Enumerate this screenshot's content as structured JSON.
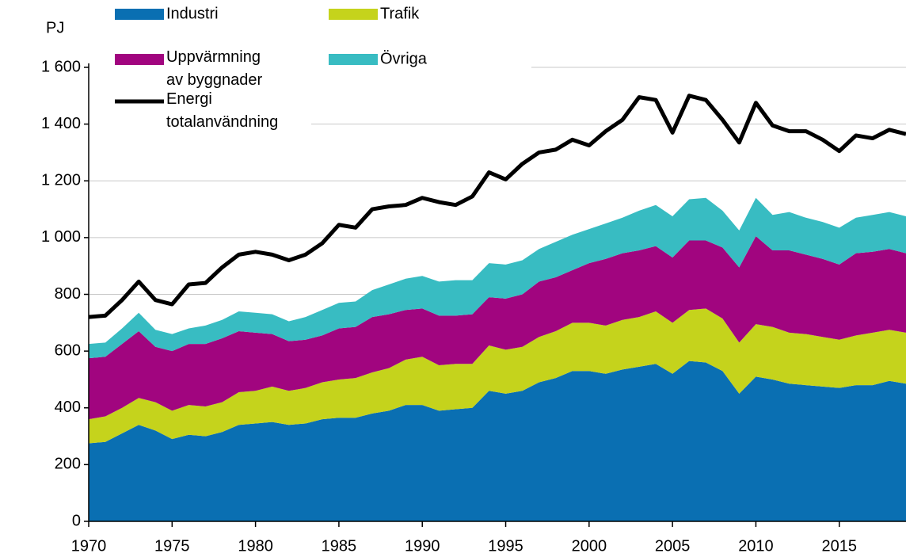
{
  "chart_data": {
    "type": "area",
    "stacked": true,
    "y_label": "PJ",
    "x": [
      1970,
      1971,
      1972,
      1973,
      1974,
      1975,
      1976,
      1977,
      1978,
      1979,
      1980,
      1981,
      1982,
      1983,
      1984,
      1985,
      1986,
      1987,
      1988,
      1989,
      1990,
      1991,
      1992,
      1993,
      1994,
      1995,
      1996,
      1997,
      1998,
      1999,
      2000,
      2001,
      2002,
      2003,
      2004,
      2005,
      2006,
      2007,
      2008,
      2009,
      2010,
      2011,
      2012,
      2013,
      2014,
      2015,
      2016,
      2017,
      2018,
      2019
    ],
    "xlim": [
      1970,
      2019
    ],
    "xticks": [
      1970,
      1975,
      1980,
      1985,
      1990,
      1995,
      2000,
      2005,
      2010,
      2015
    ],
    "ylim": [
      0,
      1600
    ],
    "yticks": [
      0,
      200,
      400,
      600,
      800,
      {
        "value": 1000,
        "label": "1 000"
      },
      {
        "value": 1200,
        "label": "1 200"
      },
      {
        "value": 1400,
        "label": "1 400"
      },
      {
        "value": 1600,
        "label": "1 600"
      }
    ],
    "grid": true,
    "legend": "top-left",
    "series": [
      {
        "name": "Industri",
        "color": "#0a6fb2",
        "values": [
          275,
          280,
          310,
          340,
          320,
          290,
          305,
          300,
          315,
          340,
          345,
          350,
          340,
          345,
          360,
          365,
          365,
          380,
          390,
          410,
          410,
          390,
          395,
          400,
          460,
          450,
          460,
          490,
          505,
          530,
          530,
          520,
          535,
          545,
          555,
          520,
          565,
          560,
          530,
          450,
          510,
          500,
          485,
          480,
          475,
          470,
          480,
          480,
          495,
          485
        ]
      },
      {
        "name": "Trafik",
        "color": "#c5d31c",
        "values": [
          85,
          90,
          90,
          95,
          100,
          100,
          105,
          105,
          105,
          115,
          115,
          125,
          120,
          125,
          130,
          135,
          140,
          145,
          150,
          160,
          170,
          160,
          160,
          155,
          160,
          155,
          155,
          160,
          165,
          170,
          170,
          170,
          175,
          175,
          185,
          180,
          180,
          190,
          185,
          180,
          185,
          185,
          180,
          180,
          175,
          170,
          175,
          185,
          180,
          180
        ]
      },
      {
        "name": "Uppvärmning av byggnader",
        "color": "#a1057f",
        "values": [
          215,
          210,
          225,
          235,
          195,
          210,
          215,
          220,
          225,
          215,
          205,
          185,
          175,
          170,
          165,
          180,
          180,
          195,
          190,
          175,
          170,
          175,
          170,
          175,
          170,
          180,
          185,
          195,
          190,
          185,
          210,
          235,
          235,
          235,
          230,
          230,
          245,
          240,
          250,
          265,
          310,
          270,
          290,
          280,
          275,
          265,
          290,
          285,
          285,
          280
        ]
      },
      {
        "name": "Övriga",
        "color": "#38bcc2",
        "values": [
          50,
          50,
          55,
          65,
          60,
          60,
          55,
          65,
          65,
          70,
          70,
          70,
          70,
          80,
          90,
          90,
          90,
          95,
          105,
          110,
          115,
          120,
          125,
          120,
          120,
          120,
          120,
          115,
          125,
          125,
          120,
          125,
          125,
          140,
          145,
          145,
          145,
          150,
          130,
          130,
          135,
          125,
          135,
          130,
          130,
          130,
          125,
          130,
          130,
          130
        ]
      },
      {
        "name": "Energi totalanvändning",
        "color": "#000000",
        "type": "line",
        "values": [
          720,
          725,
          780,
          845,
          780,
          765,
          835,
          840,
          895,
          940,
          950,
          940,
          920,
          940,
          980,
          1045,
          1035,
          1100,
          1110,
          1115,
          1140,
          1125,
          1115,
          1145,
          1230,
          1205,
          1260,
          1300,
          1310,
          1345,
          1325,
          1375,
          1415,
          1495,
          1485,
          1370,
          1500,
          1485,
          1415,
          1335,
          1475,
          1395,
          1375,
          1375,
          1345,
          1305,
          1360,
          1350,
          1380,
          1365
        ]
      }
    ]
  }
}
